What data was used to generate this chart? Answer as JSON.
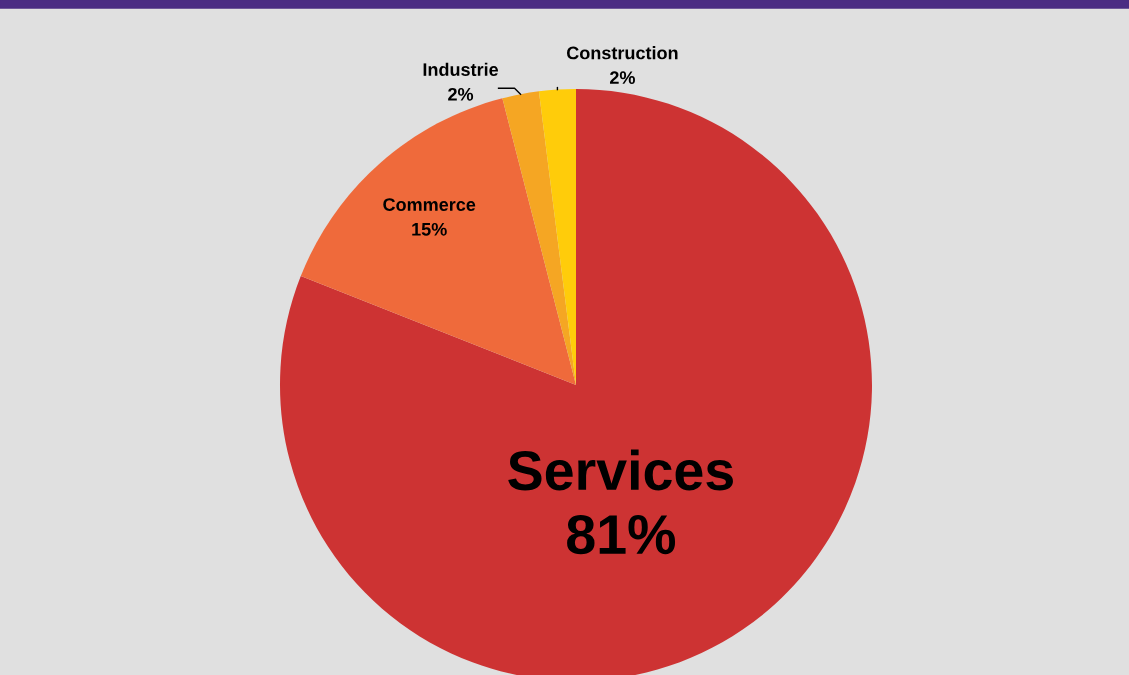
{
  "chart_data": {
    "type": "pie",
    "categories": [
      "Services",
      "Commerce",
      "Industrie",
      "Construction"
    ],
    "values": [
      81,
      15,
      2,
      2
    ],
    "colors": [
      "#cd3333",
      "#ef6a3b",
      "#f5a623",
      "#ffcc0a"
    ],
    "value_labels": [
      "81%",
      "15%",
      "2%",
      "2%"
    ]
  }
}
